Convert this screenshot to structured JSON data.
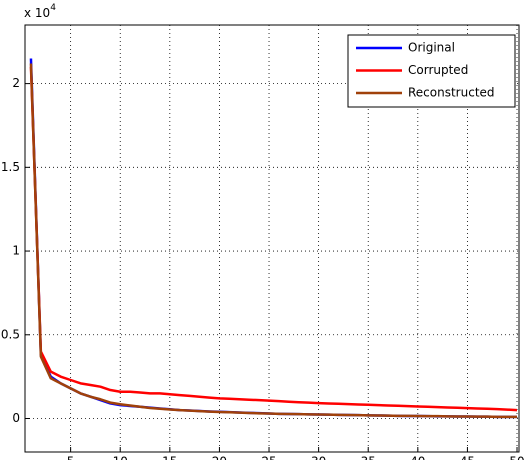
{
  "chart_data": {
    "type": "line",
    "y_multiplier_base": "x 10",
    "y_multiplier_exponent": "4",
    "x": [
      1,
      2,
      3,
      4,
      5,
      6,
      7,
      8,
      9,
      10,
      11,
      12,
      13,
      14,
      15,
      16,
      17,
      18,
      19,
      20,
      21,
      22,
      23,
      24,
      25,
      26,
      27,
      28,
      29,
      30,
      31,
      32,
      33,
      34,
      35,
      36,
      37,
      38,
      39,
      40,
      41,
      42,
      43,
      44,
      45,
      46,
      47,
      48,
      49,
      50
    ],
    "series": [
      {
        "name": "Original",
        "color": "#0000ff",
        "values": [
          2.15,
          0.38,
          0.25,
          0.21,
          0.18,
          0.15,
          0.13,
          0.11,
          0.09,
          0.08,
          0.075,
          0.07,
          0.065,
          0.06,
          0.055,
          0.05,
          0.048,
          0.045,
          0.042,
          0.04,
          0.038,
          0.036,
          0.034,
          0.032,
          0.03,
          0.028,
          0.027,
          0.026,
          0.025,
          0.024,
          0.023,
          0.022,
          0.021,
          0.02,
          0.019,
          0.018,
          0.017,
          0.016,
          0.015,
          0.015,
          0.014,
          0.013,
          0.013,
          0.012,
          0.012,
          0.011,
          0.011,
          0.01,
          0.01,
          0.01
        ]
      },
      {
        "name": "Corrupted",
        "color": "#ff0000",
        "values": [
          2.1,
          0.4,
          0.28,
          0.25,
          0.23,
          0.21,
          0.2,
          0.19,
          0.17,
          0.16,
          0.16,
          0.155,
          0.15,
          0.15,
          0.145,
          0.14,
          0.135,
          0.13,
          0.125,
          0.12,
          0.118,
          0.115,
          0.112,
          0.11,
          0.107,
          0.104,
          0.1,
          0.097,
          0.095,
          0.092,
          0.09,
          0.088,
          0.086,
          0.084,
          0.082,
          0.08,
          0.078,
          0.076,
          0.074,
          0.072,
          0.07,
          0.068,
          0.066,
          0.064,
          0.062,
          0.06,
          0.058,
          0.056,
          0.053,
          0.05
        ]
      },
      {
        "name": "Reconstructed",
        "color": "#a0410a",
        "values": [
          2.12,
          0.37,
          0.24,
          0.21,
          0.18,
          0.15,
          0.13,
          0.115,
          0.095,
          0.085,
          0.078,
          0.07,
          0.063,
          0.058,
          0.054,
          0.05,
          0.047,
          0.044,
          0.041,
          0.039,
          0.037,
          0.035,
          0.033,
          0.031,
          0.03,
          0.028,
          0.027,
          0.026,
          0.025,
          0.024,
          0.023,
          0.022,
          0.021,
          0.02,
          0.019,
          0.018,
          0.017,
          0.016,
          0.016,
          0.015,
          0.014,
          0.014,
          0.013,
          0.012,
          0.012,
          0.011,
          0.011,
          0.01,
          0.01,
          0.01
        ]
      }
    ],
    "xlim": [
      0.4,
      50.2
    ],
    "ylim": [
      -0.2,
      2.35
    ],
    "xticks": [
      5,
      10,
      15,
      20,
      25,
      30,
      35,
      40,
      45,
      50
    ],
    "yticks": [
      0,
      0.5,
      1,
      1.5,
      2
    ],
    "grid": true,
    "legend": "top-right"
  }
}
